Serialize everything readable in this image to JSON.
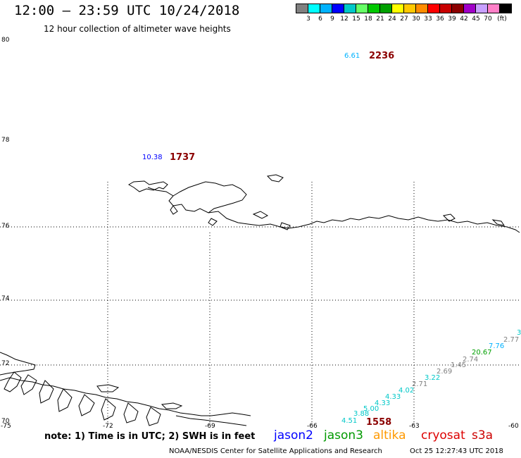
{
  "header": {
    "title": "12:00 — 23:59 UTC 10/24/2018",
    "subtitle": "12 hour collection of altimeter wave heights"
  },
  "legend": {
    "colors": [
      "#808080",
      "#00ffff",
      "#00b2ff",
      "#0000ff",
      "#00c8c8",
      "#66ff66",
      "#00c800",
      "#00a000",
      "#ffff00",
      "#ffc800",
      "#ff8c00",
      "#ff0000",
      "#c80000",
      "#8b0000",
      "#a000c8",
      "#c8a0ff",
      "#ff80c8",
      "#000000"
    ],
    "labels": [
      "3",
      "6",
      "9",
      "12",
      "15",
      "18",
      "21",
      "24",
      "27",
      "30",
      "33",
      "36",
      "39",
      "42",
      "45",
      "70",
      "(ft)"
    ]
  },
  "axes": {
    "lat_labels": [
      "80",
      "78",
      "76",
      "74",
      "72",
      "70"
    ],
    "lon_labels": [
      "-75",
      "-72",
      "-69",
      "-66",
      "-63",
      "-60"
    ]
  },
  "annotations": [
    {
      "text": "6.61",
      "color": "#00b2ff"
    },
    {
      "text": "2236",
      "color": "#8b0000"
    },
    {
      "text": "10.38",
      "color": "#0000ff"
    },
    {
      "text": "1737",
      "color": "#8b0000"
    },
    {
      "text": "1558",
      "color": "#8b0000"
    }
  ],
  "swh_points": [
    {
      "text": "4.51",
      "color": "#00c8c8"
    },
    {
      "text": "3.88",
      "color": "#00c8c8"
    },
    {
      "text": "5.00",
      "color": "#00c8c8"
    },
    {
      "text": "4.33",
      "color": "#00c8c8"
    },
    {
      "text": "4.33",
      "color": "#00c8c8"
    },
    {
      "text": "4.02",
      "color": "#00c8c8"
    },
    {
      "text": "2.71",
      "color": "#808080"
    },
    {
      "text": "3.22",
      "color": "#00c8c8"
    },
    {
      "text": "2.69",
      "color": "#808080"
    },
    {
      "text": "1.45",
      "color": "#808080"
    },
    {
      "text": "2.74",
      "color": "#808080"
    },
    {
      "text": "20.67",
      "color": "#00a000"
    },
    {
      "text": "7.76",
      "color": "#00b2ff"
    },
    {
      "text": "2.77",
      "color": "#808080"
    },
    {
      "text": "3",
      "color": "#00c8c8"
    }
  ],
  "note": "note: 1) Time is in UTC; 2) SWH is in feet",
  "satellites": [
    {
      "name": "jason2",
      "color": "#0000ff"
    },
    {
      "name": "jason3",
      "color": "#009900"
    },
    {
      "name": "altika",
      "color": "#ff9900"
    },
    {
      "name": "cryosat",
      "color": "#dd0000"
    },
    {
      "name": "s3a",
      "color": "#cc0000"
    }
  ],
  "footer": {
    "left": "NOAA/NESDIS Center for Satellite Applications and Research",
    "right": "Oct 25 12:27:43 UTC 2018"
  }
}
